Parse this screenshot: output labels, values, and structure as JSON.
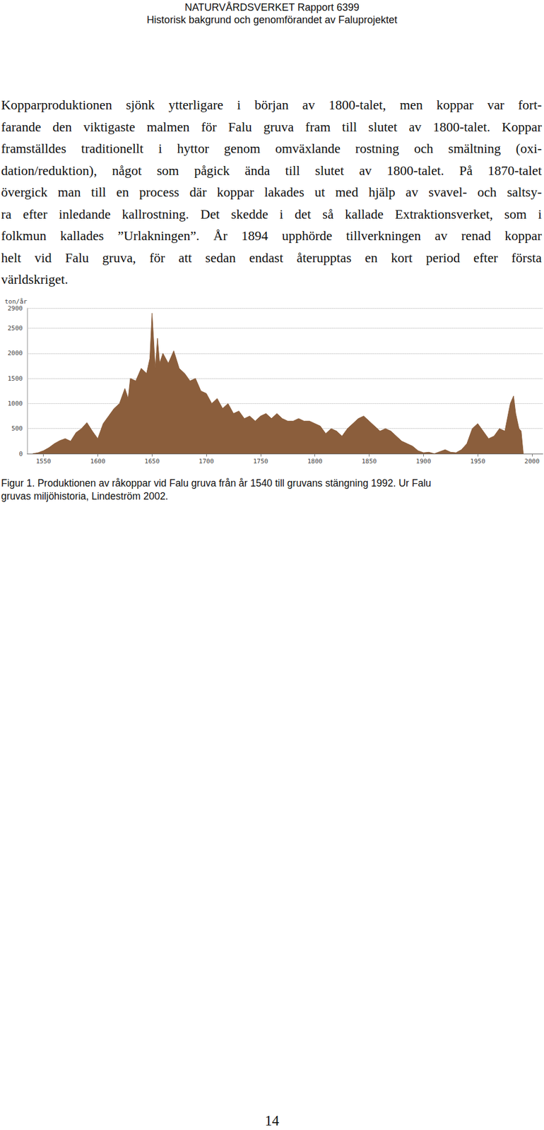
{
  "header": {
    "lines": [
      "NATURVÅRDSVERKET Rapport 6399",
      "Historisk bakgrund och genomförandet av Faluprojektet"
    ]
  },
  "paragraph": {
    "lines": [
      "Kopparproduktionen sjönk ytterligare i början av 1800-talet, men koppar var fort-",
      "farande den viktigaste malmen för Falu gruva fram till slutet av 1800-talet. Koppar",
      "framställdes traditionellt i hyttor genom omväxlande rostning och smältning (oxi-",
      "dation/reduktion), något som pågick ända till slutet av 1800-talet. På 1870-talet",
      "övergick man till en process där koppar lakades ut med hjälp av svavel- och saltsy-",
      "ra efter inledande kallrostning. Det skedde i det så kallade Extraktionsverket, som i",
      "folkmun kallades ”Urlakningen”. År 1894 upphörde tillverkningen av renad koppar",
      "helt vid Falu gruva, för att sedan endast återupptas en kort period efter första",
      "världskriget."
    ]
  },
  "chart_data": {
    "type": "area",
    "ylabel": "ton/år",
    "x": [
      1540,
      1545,
      1550,
      1555,
      1560,
      1565,
      1570,
      1575,
      1580,
      1585,
      1590,
      1595,
      1600,
      1605,
      1610,
      1615,
      1620,
      1625,
      1628,
      1630,
      1635,
      1640,
      1645,
      1648,
      1650,
      1653,
      1655,
      1657,
      1660,
      1665,
      1670,
      1675,
      1680,
      1685,
      1690,
      1695,
      1700,
      1705,
      1710,
      1715,
      1720,
      1725,
      1730,
      1735,
      1740,
      1745,
      1750,
      1755,
      1760,
      1765,
      1770,
      1775,
      1780,
      1785,
      1790,
      1795,
      1800,
      1805,
      1810,
      1815,
      1820,
      1825,
      1830,
      1835,
      1840,
      1845,
      1850,
      1855,
      1860,
      1865,
      1870,
      1875,
      1880,
      1885,
      1890,
      1895,
      1900,
      1905,
      1910,
      1915,
      1920,
      1925,
      1930,
      1935,
      1940,
      1945,
      1950,
      1955,
      1960,
      1965,
      1970,
      1975,
      1980,
      1983,
      1985,
      1988,
      1990,
      1992
    ],
    "values": [
      0,
      20,
      60,
      120,
      200,
      260,
      300,
      250,
      420,
      500,
      620,
      450,
      300,
      600,
      750,
      900,
      1000,
      1300,
      1100,
      1500,
      1450,
      1700,
      1600,
      1900,
      2800,
      1700,
      2300,
      1800,
      2000,
      1800,
      2050,
      1700,
      1600,
      1450,
      1500,
      1250,
      1200,
      1000,
      1100,
      900,
      1000,
      800,
      850,
      700,
      750,
      650,
      750,
      800,
      700,
      800,
      700,
      650,
      650,
      700,
      650,
      650,
      600,
      550,
      400,
      500,
      450,
      350,
      500,
      600,
      700,
      750,
      650,
      550,
      450,
      500,
      450,
      350,
      250,
      200,
      150,
      60,
      20,
      30,
      0,
      40,
      80,
      30,
      20,
      80,
      200,
      500,
      600,
      450,
      300,
      350,
      500,
      450,
      1000,
      1150,
      800,
      500,
      450,
      0
    ],
    "color": "#8b5e3c",
    "xlim": [
      1535,
      2010
    ],
    "xticks": [
      1550,
      1600,
      1650,
      1700,
      1750,
      1800,
      1850,
      1900,
      1950,
      2000
    ],
    "ylim": [
      0,
      2900
    ],
    "yticks": [
      0,
      500,
      1000,
      1500,
      2000,
      2500
    ],
    "grid": true
  },
  "caption": {
    "lines": [
      "Figur 1. Produktionen av råkoppar vid Falu gruva från år 1540 till gruvans stängning 1992. Ur Falu",
      "gruvas miljöhistoria, Lindeström 2002."
    ]
  },
  "page_number": "14"
}
